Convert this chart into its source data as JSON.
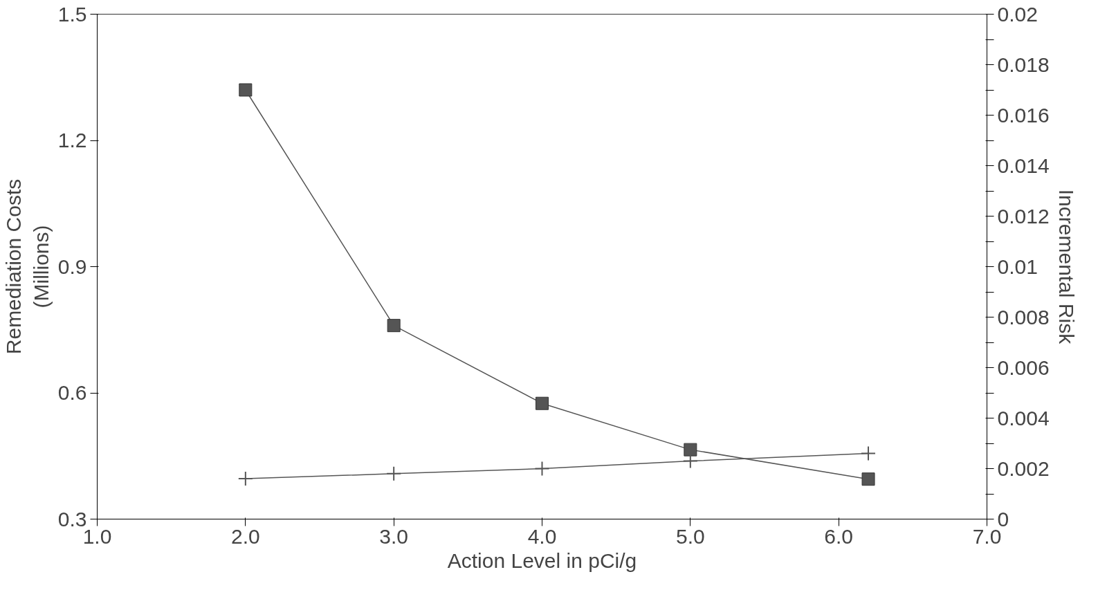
{
  "chart_data": {
    "type": "line",
    "xlabel": "Action Level in pCi/g",
    "ylabel": "Remediation Costs\n(Millions)",
    "y2label": "Incremental Risk",
    "xlim": [
      1.0,
      7.0
    ],
    "xticks": [
      {
        "value": 1,
        "label": "1.0"
      },
      {
        "value": 2,
        "label": "2.0"
      },
      {
        "value": 3,
        "label": "3.0"
      },
      {
        "value": 4,
        "label": "4.0"
      },
      {
        "value": 5,
        "label": "5.0"
      },
      {
        "value": 6,
        "label": "6.0"
      },
      {
        "value": 7,
        "label": "7.0"
      }
    ],
    "ylim": [
      0.3,
      1.5
    ],
    "yticks": [
      0.3,
      0.6,
      0.9,
      1.2,
      1.5
    ],
    "y2lim": [
      0,
      0.02
    ],
    "y2ticks": [
      0,
      {
        "value": 0.001,
        "label": null
      },
      0.002,
      {
        "value": 0.003,
        "label": null
      },
      0.004,
      {
        "value": 0.005,
        "label": null
      },
      0.006,
      {
        "value": 0.007,
        "label": null
      },
      0.008,
      {
        "value": 0.009,
        "label": null
      },
      0.01,
      {
        "value": 0.011,
        "label": null
      },
      0.012,
      {
        "value": 0.013,
        "label": null
      },
      0.014,
      {
        "value": 0.015,
        "label": null
      },
      0.016,
      {
        "value": 0.017,
        "label": null
      },
      0.018,
      {
        "value": 0.019,
        "label": null
      },
      0.02
    ],
    "grid": false,
    "series": [
      {
        "x": [
          2,
          3,
          4,
          5,
          6.2
        ],
        "values": [
          1.32,
          0.76,
          0.575,
          0.465,
          0.395
        ],
        "color": "#555555",
        "marker": "square"
      },
      {
        "x": [
          2,
          3,
          4,
          5,
          6.2
        ],
        "values": [
          0.0016,
          0.0018,
          0.002,
          0.0023,
          0.0026
        ],
        "color": "#555555",
        "marker": "cross",
        "axis": "y2"
      }
    ]
  }
}
